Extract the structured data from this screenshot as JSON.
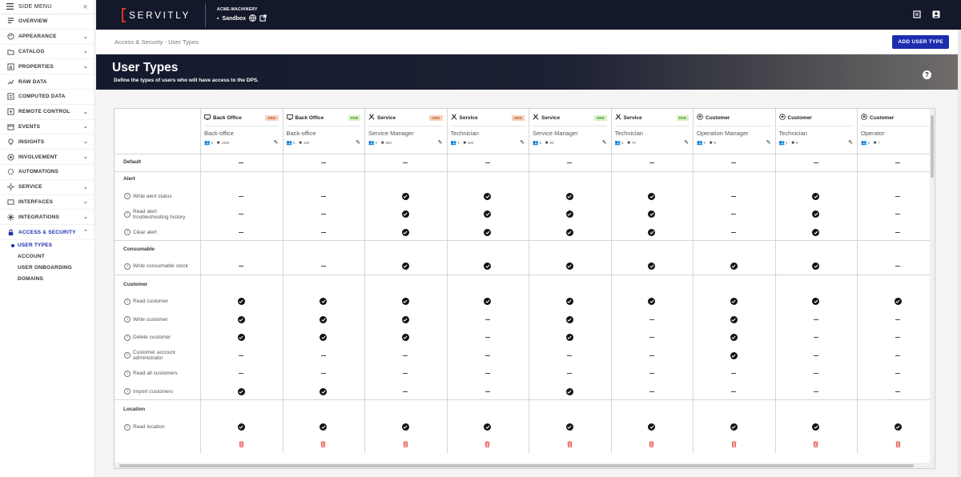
{
  "sidebar": {
    "title": "SIDE MENU",
    "items": [
      {
        "label": "OVERVIEW",
        "icon": "overview-icon",
        "chevron": false
      },
      {
        "label": "APPEARANCE",
        "icon": "palette-icon",
        "chevron": true
      },
      {
        "label": "CATALOG",
        "icon": "folder-icon",
        "chevron": true
      },
      {
        "label": "PROPERTIES",
        "icon": "properties-icon",
        "chevron": true
      },
      {
        "label": "RAW DATA",
        "icon": "raw-data-icon",
        "chevron": false
      },
      {
        "label": "COMPUTED DATA",
        "icon": "computed-data-icon",
        "chevron": false
      },
      {
        "label": "REMOTE CONTROL",
        "icon": "remote-control-icon",
        "chevron": true
      },
      {
        "label": "EVENTS",
        "icon": "events-icon",
        "chevron": true
      },
      {
        "label": "INSIGHTS",
        "icon": "insights-icon",
        "chevron": true
      },
      {
        "label": "INVOLVEMENT",
        "icon": "involvement-icon",
        "chevron": true
      },
      {
        "label": "AUTOMATIONS",
        "icon": "automations-icon",
        "chevron": false
      },
      {
        "label": "SERVICE",
        "icon": "service-icon",
        "chevron": true
      },
      {
        "label": "INTERFACES",
        "icon": "interfaces-icon",
        "chevron": true
      },
      {
        "label": "INTEGRATIONS",
        "icon": "integrations-icon",
        "chevron": true
      },
      {
        "label": "ACCESS & SECURITY",
        "icon": "lock-icon",
        "chevron": true,
        "active": true
      }
    ],
    "subitems": [
      {
        "label": "USER TYPES",
        "active": true
      },
      {
        "label": "ACCOUNT"
      },
      {
        "label": "USER ONBOARDING"
      },
      {
        "label": "DOMAINS"
      }
    ]
  },
  "topbar": {
    "logo": "SERVITLY",
    "tenant": "ACME-MACHINERY",
    "environment": "Sandbox"
  },
  "breadcrumb": "Access & Security - User Types",
  "add_button": "ADD USER TYPE",
  "hero": {
    "title": "User Types",
    "description": "Define the types of users who will have access to the DPS.",
    "help": "?"
  },
  "columns": [
    {
      "category": "Back Office",
      "icon": "monitor-icon",
      "badge": "ORG",
      "name": "Back-office",
      "users": "0",
      "rating": "1000"
    },
    {
      "category": "Back Office",
      "icon": "monitor-icon",
      "badge": "PAR",
      "name": "Back-office",
      "users": "0",
      "rating": "100"
    },
    {
      "category": "Service",
      "icon": "tools-icon",
      "badge": "ORG",
      "name": "Service Manager",
      "users": "0",
      "rating": "900"
    },
    {
      "category": "Service",
      "icon": "tools-icon",
      "badge": "ORG",
      "name": "Technician",
      "users": "1",
      "rating": "400"
    },
    {
      "category": "Service",
      "icon": "tools-icon",
      "badge": "PAR",
      "name": "Service Manager",
      "users": "0",
      "rating": "90"
    },
    {
      "category": "Service",
      "icon": "tools-icon",
      "badge": "PAR",
      "name": "Technician",
      "users": "2",
      "rating": "70"
    },
    {
      "category": "Customer",
      "icon": "customer-icon",
      "badge": "",
      "name": "Operation Manager",
      "users": "0",
      "rating": "9"
    },
    {
      "category": "Customer",
      "icon": "customer-icon",
      "badge": "",
      "name": "Technician",
      "users": "1",
      "rating": "8"
    },
    {
      "category": "Customer",
      "icon": "customer-icon",
      "badge": "",
      "name": "Operator",
      "users": "2",
      "rating": "7"
    }
  ],
  "rows": [
    {
      "kind": "perm",
      "label": "Default",
      "bold": true,
      "values": [
        0,
        0,
        0,
        0,
        0,
        0,
        0,
        0,
        0
      ]
    },
    {
      "kind": "section",
      "label": "Alert"
    },
    {
      "kind": "perm",
      "label": "Write alert status",
      "values": [
        0,
        0,
        1,
        1,
        1,
        1,
        0,
        1,
        0
      ]
    },
    {
      "kind": "perm",
      "label": "Read alert troubleshooting history",
      "values": [
        0,
        0,
        1,
        1,
        1,
        1,
        0,
        1,
        0
      ]
    },
    {
      "kind": "perm",
      "label": "Clear alert",
      "values": [
        0,
        0,
        1,
        1,
        1,
        1,
        0,
        1,
        0
      ]
    },
    {
      "kind": "section",
      "label": "Consumable"
    },
    {
      "kind": "perm",
      "label": "Write consumable stock",
      "values": [
        0,
        0,
        1,
        1,
        1,
        1,
        1,
        1,
        0
      ]
    },
    {
      "kind": "section",
      "label": "Customer"
    },
    {
      "kind": "perm",
      "label": "Read customer",
      "values": [
        1,
        1,
        1,
        1,
        1,
        1,
        1,
        1,
        1
      ]
    },
    {
      "kind": "perm",
      "label": "Write customer",
      "values": [
        1,
        1,
        1,
        0,
        1,
        0,
        1,
        0,
        0
      ]
    },
    {
      "kind": "perm",
      "label": "Delete customer",
      "values": [
        1,
        1,
        1,
        0,
        1,
        0,
        1,
        0,
        0
      ]
    },
    {
      "kind": "perm",
      "label": "Customer account administrator",
      "values": [
        0,
        0,
        0,
        0,
        0,
        0,
        1,
        0,
        0
      ]
    },
    {
      "kind": "perm",
      "label": "Read all customers",
      "values": [
        0,
        0,
        0,
        0,
        0,
        0,
        0,
        0,
        0
      ]
    },
    {
      "kind": "perm",
      "label": "Import customers",
      "values": [
        1,
        1,
        0,
        0,
        1,
        0,
        0,
        0,
        0
      ]
    },
    {
      "kind": "section",
      "label": "Location"
    },
    {
      "kind": "perm",
      "label": "Read location",
      "values": [
        1,
        1,
        1,
        1,
        1,
        1,
        1,
        1,
        1
      ]
    }
  ],
  "colors": {
    "accent": "#1c2db0",
    "topbar": "#14182b",
    "delete": "#e0342b",
    "org_badge": "#f7d2bd",
    "par_badge": "#d6f2c4"
  }
}
